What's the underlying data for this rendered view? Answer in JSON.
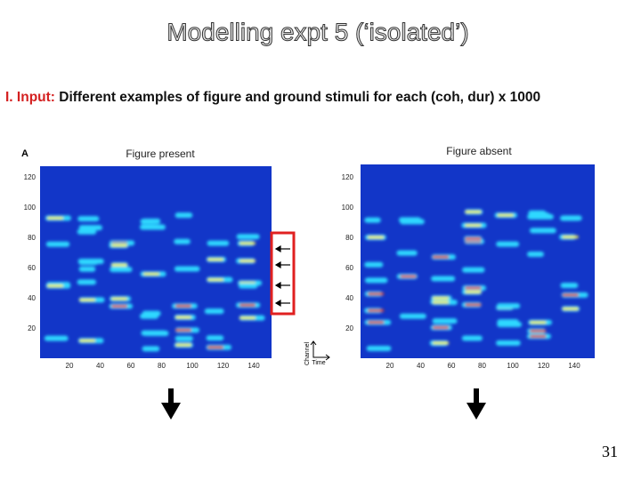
{
  "header": {
    "title": "Modelling expt 5 (‘isolated’)"
  },
  "input": {
    "label": "I. Input:",
    "text": "Different examples of figure and ground stimuli for each (coh, dur) x 1000"
  },
  "panel_label": "A",
  "panels": [
    {
      "title": "Figure present",
      "yticks": [
        120,
        100,
        80,
        60,
        40,
        20
      ],
      "xticks": [
        20,
        40,
        60,
        80,
        100,
        120,
        140
      ]
    },
    {
      "title": "Figure absent",
      "yticks": [
        120,
        100,
        80,
        60,
        40,
        20
      ],
      "xticks": [
        20,
        40,
        60,
        80,
        100,
        120,
        140
      ]
    }
  ],
  "axis_icon": {
    "y": "Channel",
    "x": "Time"
  },
  "page_number": "31"
}
